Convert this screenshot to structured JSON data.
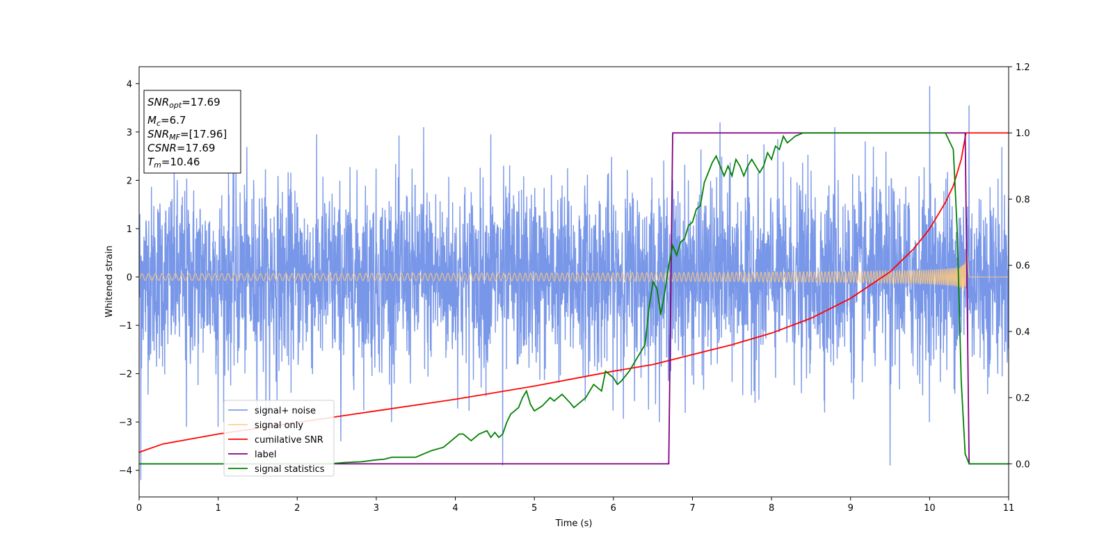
{
  "chart_data": {
    "type": "line",
    "xlabel": "Time (s)",
    "ylabel": "Whitened strain",
    "xlim": [
      0,
      11
    ],
    "ylim_left": [
      -4.55,
      4.35
    ],
    "ylim_right": [
      -0.1,
      1.2
    ],
    "x_ticks": [
      "0",
      "1",
      "2",
      "3",
      "4",
      "5",
      "6",
      "7",
      "8",
      "9",
      "10",
      "11"
    ],
    "y_left_ticks": [
      "4",
      "3",
      "2",
      "1",
      "0",
      "−1",
      "−2",
      "−3",
      "−4"
    ],
    "y_right_ticks": [
      "1.2",
      "1.0",
      "0.8",
      "0.6",
      "0.4",
      "0.2",
      "0.0"
    ],
    "grid": false,
    "legend_position": "lower-left",
    "series": [
      {
        "name": "signal+ noise",
        "axis": "left",
        "color": "#6a8ce6",
        "description_values": {
          "noise_sigma": 0.95,
          "extreme_spikes": [
            [
              0.02,
              -4.2
            ],
            [
              4.6,
              -3.9
            ],
            [
              9.5,
              -3.9
            ],
            [
              10.0,
              3.95
            ],
            [
              10.5,
              3.55
            ],
            [
              0.6,
              -3.1
            ],
            [
              1.0,
              -3.1
            ],
            [
              1.65,
              -3.5
            ],
            [
              2.55,
              -3.4
            ],
            [
              3.6,
              3.1
            ],
            [
              4.45,
              2.95
            ],
            [
              7.35,
              3.2
            ],
            [
              8.8,
              3.1
            ]
          ]
        }
      },
      {
        "name": "signal only",
        "axis": "left",
        "color": "#ffc87a",
        "description_values": {
          "amp_start": 0.07,
          "amp_peak": 0.95,
          "merger_time": 10.46,
          "end_time": 10.5
        }
      },
      {
        "name": "cumilative SNR",
        "axis": "right",
        "color": "#ff0000",
        "x": [
          0,
          0.3,
          1,
          2,
          3,
          4,
          5,
          6,
          6.5,
          7,
          7.5,
          8,
          8.5,
          9,
          9.5,
          9.8,
          10,
          10.2,
          10.3,
          10.4,
          10.46,
          11
        ],
        "y": [
          0.035,
          0.06,
          0.09,
          0.125,
          0.16,
          0.195,
          0.235,
          0.28,
          0.3,
          0.33,
          0.36,
          0.395,
          0.44,
          0.5,
          0.58,
          0.65,
          0.71,
          0.79,
          0.84,
          0.92,
          1.0,
          1.0
        ]
      },
      {
        "name": "label",
        "axis": "right",
        "color": "#800080",
        "x": [
          0,
          6.7,
          6.75,
          10.45,
          10.5,
          11
        ],
        "y": [
          0,
          0,
          1,
          1,
          0,
          0
        ]
      },
      {
        "name": "signal statistics",
        "axis": "right",
        "color": "#008000",
        "x": [
          0,
          2.4,
          2.6,
          2.8,
          3.0,
          3.1,
          3.2,
          3.35,
          3.5,
          3.6,
          3.7,
          3.85,
          3.95,
          4.05,
          4.1,
          4.2,
          4.3,
          4.4,
          4.45,
          4.5,
          4.55,
          4.6,
          4.65,
          4.7,
          4.8,
          4.85,
          4.9,
          4.95,
          5.0,
          5.1,
          5.2,
          5.25,
          5.35,
          5.45,
          5.5,
          5.55,
          5.65,
          5.75,
          5.85,
          5.9,
          5.95,
          6.0,
          6.05,
          6.1,
          6.2,
          6.25,
          6.3,
          6.35,
          6.4,
          6.45,
          6.5,
          6.55,
          6.6,
          6.65,
          6.7,
          6.75,
          6.8,
          6.85,
          6.9,
          6.95,
          7.0,
          7.05,
          7.1,
          7.15,
          7.2,
          7.25,
          7.3,
          7.35,
          7.4,
          7.45,
          7.5,
          7.55,
          7.6,
          7.65,
          7.7,
          7.75,
          7.8,
          7.85,
          7.9,
          7.95,
          8.0,
          8.05,
          8.1,
          8.15,
          8.2,
          8.3,
          8.4,
          8.5,
          8.6,
          8.8,
          9.0,
          9.2,
          9.5,
          9.8,
          10.0,
          10.2,
          10.3,
          10.35,
          10.4,
          10.45,
          10.5,
          11
        ],
        "y": [
          0,
          0,
          0.004,
          0.006,
          0.012,
          0.014,
          0.02,
          0.02,
          0.02,
          0.03,
          0.04,
          0.05,
          0.07,
          0.09,
          0.09,
          0.07,
          0.09,
          0.1,
          0.08,
          0.095,
          0.08,
          0.09,
          0.125,
          0.15,
          0.17,
          0.2,
          0.22,
          0.18,
          0.16,
          0.175,
          0.2,
          0.19,
          0.21,
          0.185,
          0.17,
          0.18,
          0.2,
          0.24,
          0.22,
          0.28,
          0.27,
          0.26,
          0.24,
          0.25,
          0.28,
          0.3,
          0.32,
          0.34,
          0.36,
          0.47,
          0.55,
          0.53,
          0.45,
          0.52,
          0.6,
          0.66,
          0.63,
          0.67,
          0.68,
          0.72,
          0.73,
          0.77,
          0.78,
          0.85,
          0.88,
          0.91,
          0.93,
          0.9,
          0.87,
          0.9,
          0.87,
          0.92,
          0.9,
          0.87,
          0.9,
          0.92,
          0.9,
          0.88,
          0.9,
          0.94,
          0.92,
          0.96,
          0.95,
          0.99,
          0.97,
          0.99,
          1.0,
          1.0,
          1.0,
          1.0,
          1.0,
          1.0,
          1.0,
          1.0,
          1.0,
          1.0,
          0.95,
          0.7,
          0.25,
          0.03,
          0.0,
          0.0
        ]
      }
    ]
  },
  "info_box": {
    "snr_opt_sym": "SNR",
    "snr_opt_sub": "opt",
    "snr_opt_val": "=17.69",
    "mc_sym": "M",
    "mc_sub": "c",
    "mc_val": "=6.7",
    "snr_mf_sym": "SNR",
    "snr_mf_sub": "MF",
    "snr_mf_val": "=[17.96]",
    "csnr_sym": "CSNR",
    "csnr_val": "=17.69",
    "tm_sym": "T",
    "tm_sub": "m",
    "tm_val": "=10.46"
  }
}
